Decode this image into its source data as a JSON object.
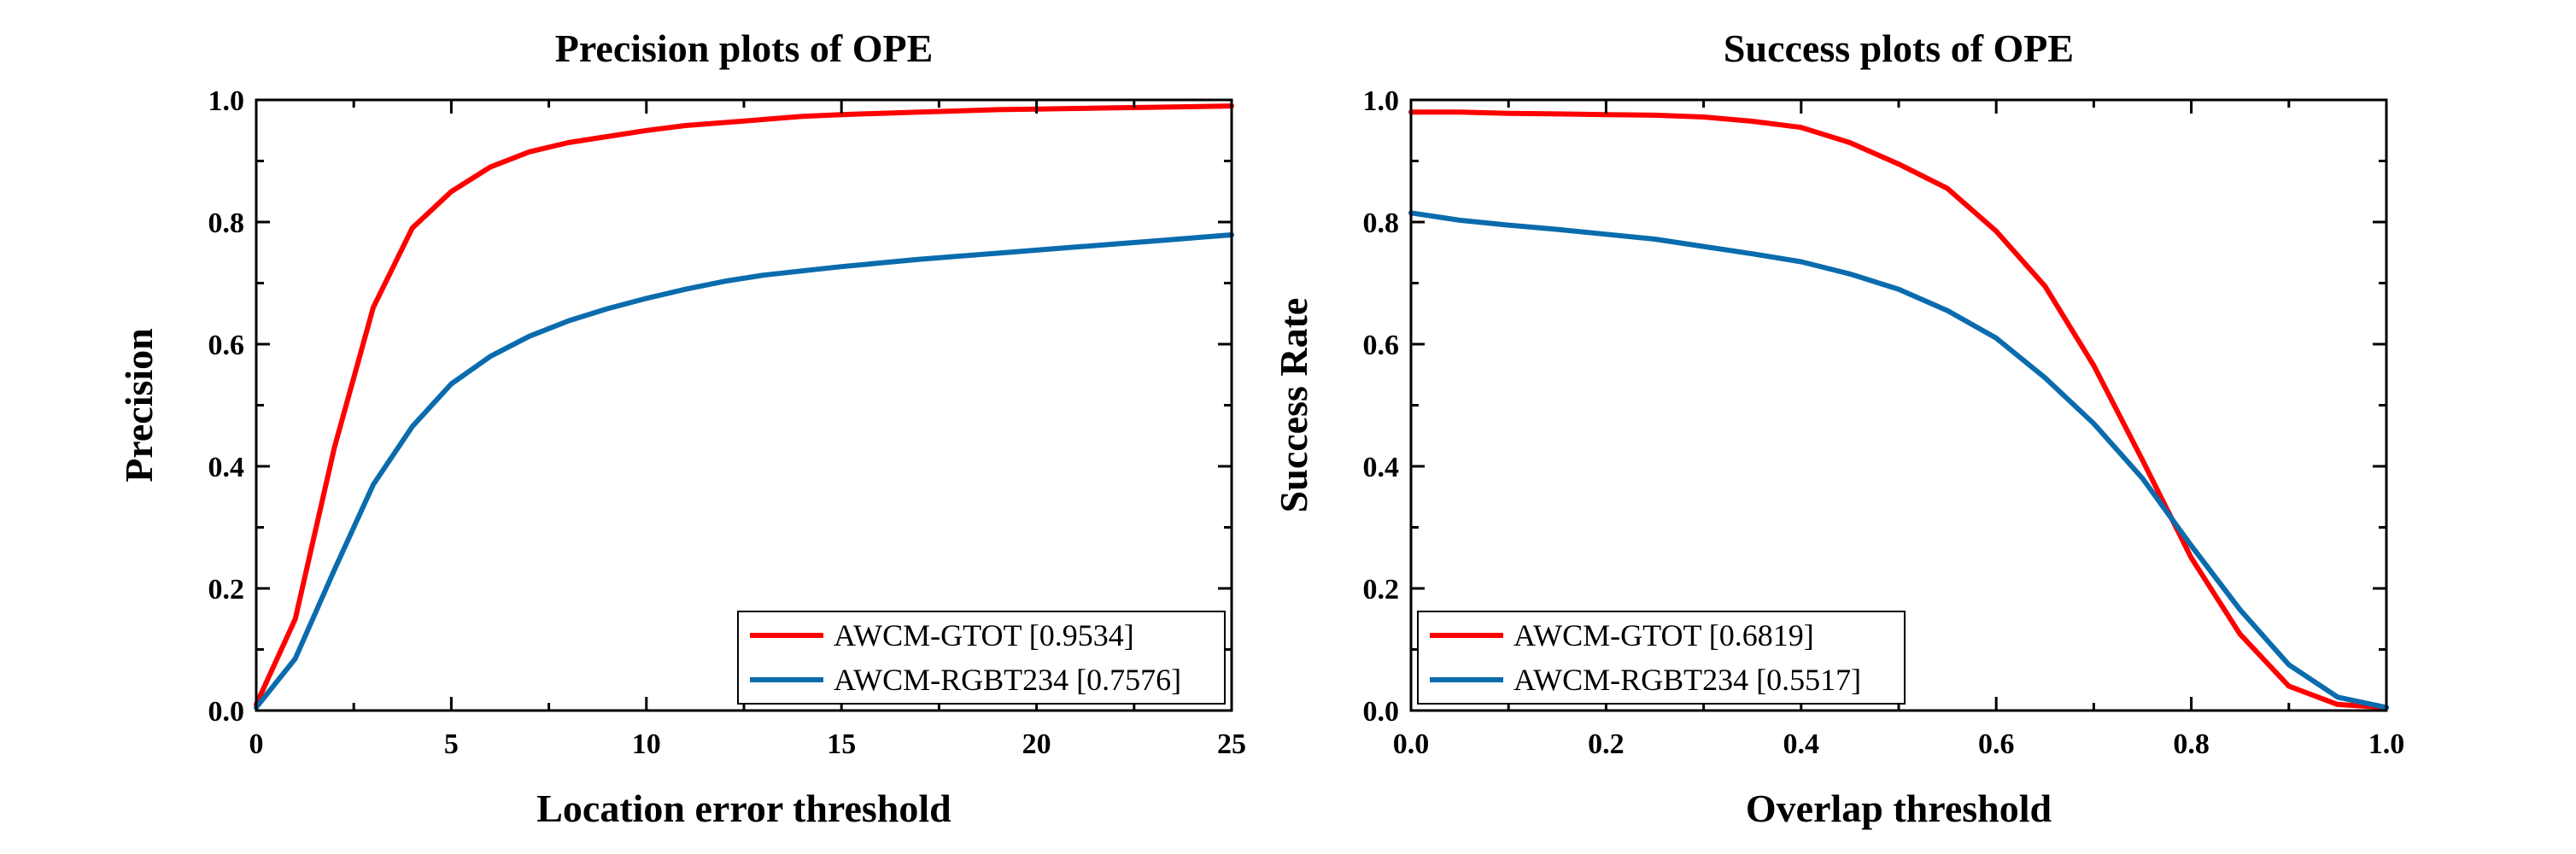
{
  "chart_data": [
    {
      "type": "line",
      "title": "Precision plots of OPE",
      "xlabel": "Location error threshold",
      "ylabel": "Precision",
      "xlim": [
        0,
        25
      ],
      "ylim": [
        0,
        1
      ],
      "xticks": [
        0,
        5,
        10,
        15,
        20,
        25
      ],
      "xtick_labels": [
        "0",
        "5",
        "10",
        "15",
        "20",
        "25"
      ],
      "yticks": [
        0,
        0.2,
        0.4,
        0.6,
        0.8,
        1.0
      ],
      "ytick_labels": [
        "0.0",
        "0.2",
        "0.4",
        "0.6",
        "0.8",
        "1.0"
      ],
      "grid": false,
      "legend_position": "bottom-right",
      "series": [
        {
          "name": "AWCM-GTOT [0.9534]",
          "color": "#ff0000",
          "x": [
            0,
            1,
            2,
            3,
            4,
            5,
            6,
            7,
            8,
            9,
            10,
            11,
            12,
            13,
            14,
            15,
            16,
            17,
            18,
            19,
            20,
            21,
            22,
            23,
            24,
            25
          ],
          "y": [
            0.01,
            0.15,
            0.43,
            0.66,
            0.79,
            0.85,
            0.89,
            0.915,
            0.93,
            0.94,
            0.95,
            0.958,
            0.963,
            0.968,
            0.973,
            0.976,
            0.978,
            0.98,
            0.982,
            0.984,
            0.985,
            0.986,
            0.987,
            0.988,
            0.989,
            0.99
          ]
        },
        {
          "name": "AWCM-RGBT234 [0.7576]",
          "color": "#0a6cad",
          "x": [
            0,
            1,
            2,
            3,
            4,
            5,
            6,
            7,
            8,
            9,
            10,
            11,
            12,
            13,
            14,
            15,
            16,
            17,
            18,
            19,
            20,
            21,
            22,
            23,
            24,
            25
          ],
          "y": [
            0.005,
            0.085,
            0.23,
            0.37,
            0.465,
            0.535,
            0.58,
            0.613,
            0.638,
            0.658,
            0.675,
            0.69,
            0.703,
            0.713,
            0.72,
            0.727,
            0.733,
            0.739,
            0.744,
            0.749,
            0.754,
            0.759,
            0.764,
            0.769,
            0.774,
            0.779
          ]
        }
      ]
    },
    {
      "type": "line",
      "title": "Success plots of OPE",
      "xlabel": "Overlap threshold",
      "ylabel": "Success Rate",
      "xlim": [
        0,
        1
      ],
      "ylim": [
        0,
        1
      ],
      "xticks": [
        0,
        0.2,
        0.4,
        0.6,
        0.8,
        1.0
      ],
      "xtick_labels": [
        "0.0",
        "0.2",
        "0.4",
        "0.6",
        "0.8",
        "1.0"
      ],
      "yticks": [
        0,
        0.2,
        0.4,
        0.6,
        0.8,
        1.0
      ],
      "ytick_labels": [
        "0.0",
        "0.2",
        "0.4",
        "0.6",
        "0.8",
        "1.0"
      ],
      "grid": false,
      "legend_position": "bottom-left",
      "series": [
        {
          "name": "AWCM-GTOT [0.6819]",
          "color": "#ff0000",
          "x": [
            0,
            0.05,
            0.1,
            0.15,
            0.2,
            0.25,
            0.3,
            0.35,
            0.4,
            0.45,
            0.5,
            0.55,
            0.6,
            0.65,
            0.7,
            0.75,
            0.8,
            0.85,
            0.9,
            0.95,
            1.0
          ],
          "y": [
            0.98,
            0.98,
            0.978,
            0.977,
            0.976,
            0.975,
            0.972,
            0.965,
            0.955,
            0.93,
            0.895,
            0.855,
            0.785,
            0.695,
            0.565,
            0.41,
            0.25,
            0.125,
            0.04,
            0.01,
            0.005
          ]
        },
        {
          "name": "AWCM-RGBT234 [0.5517]",
          "color": "#0a6cad",
          "x": [
            0,
            0.05,
            0.1,
            0.15,
            0.2,
            0.25,
            0.3,
            0.35,
            0.4,
            0.45,
            0.5,
            0.55,
            0.6,
            0.65,
            0.7,
            0.75,
            0.8,
            0.85,
            0.9,
            0.95,
            1.0
          ],
          "y": [
            0.815,
            0.803,
            0.795,
            0.788,
            0.78,
            0.772,
            0.76,
            0.748,
            0.735,
            0.715,
            0.69,
            0.655,
            0.61,
            0.545,
            0.47,
            0.38,
            0.27,
            0.165,
            0.075,
            0.022,
            0.005
          ]
        }
      ]
    }
  ]
}
